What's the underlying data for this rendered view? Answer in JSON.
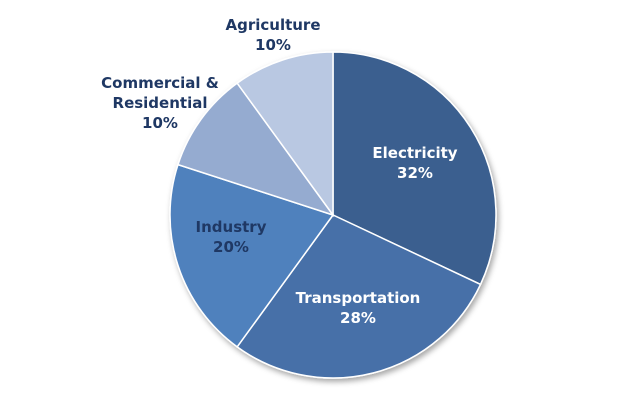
{
  "chart_data": {
    "type": "pie",
    "title": "",
    "slices": [
      {
        "label": "Electricity",
        "value": 32,
        "value_label": "32%",
        "color": "#3a5f8f",
        "label_color": "#ffffff",
        "label_placement": "inside"
      },
      {
        "label": "Transportation",
        "value": 28,
        "value_label": "28%",
        "color": "#4670a8",
        "label_color": "#ffffff",
        "label_placement": "inside"
      },
      {
        "label": "Industry",
        "value": 20,
        "value_label": "20%",
        "color": "#4f81bd",
        "label_color": "#1f3864",
        "label_placement": "inside"
      },
      {
        "label": "Commercial & Residential",
        "value": 10,
        "value_label": "10%",
        "color": "#95abd0",
        "label_color": "#1f3864",
        "label_placement": "outside"
      },
      {
        "label": "Agriculture",
        "value": 10,
        "value_label": "10%",
        "color": "#b9c8e2",
        "label_color": "#1f3864",
        "label_placement": "outside"
      }
    ],
    "start": "top",
    "direction": "clockwise",
    "legend": "none",
    "slice_border_color": "#ffffff"
  }
}
